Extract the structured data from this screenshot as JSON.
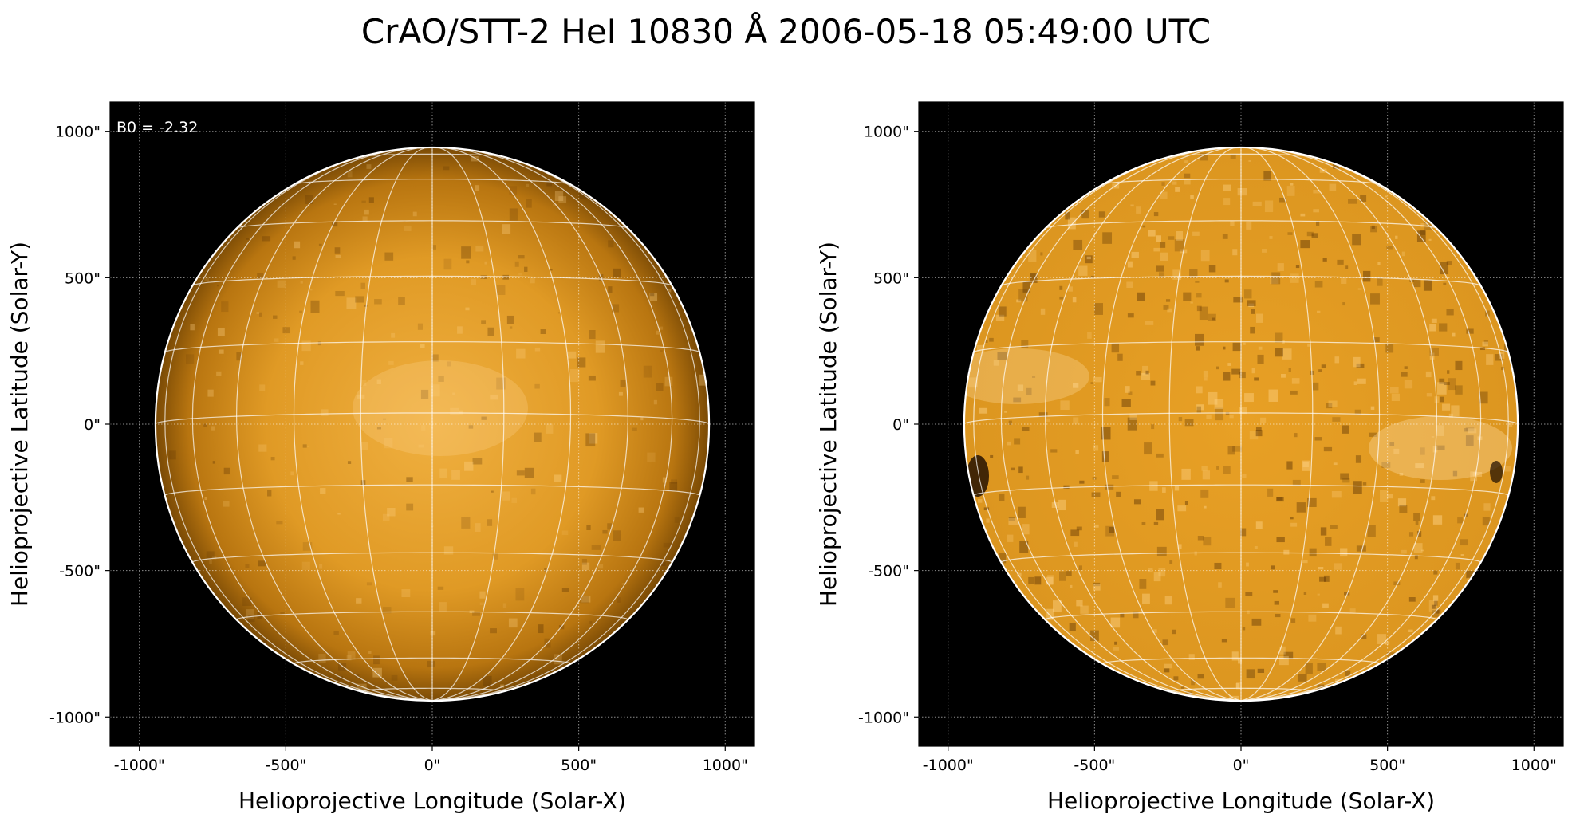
{
  "figure": {
    "title": "CrAO/STT-2 HeI 10830 Å 2006-05-18 05:49:00 UTC"
  },
  "panels": [
    {
      "id": "left",
      "xlabel": "Helioprojective Longitude (Solar-X)",
      "ylabel": "Helioprojective Latitude (Solar-Y)",
      "xticks": [
        "-1000\"",
        "-500\"",
        "0\"",
        "500\"",
        "1000\""
      ],
      "yticks": [
        "1000\"",
        "500\"",
        "0\"",
        "-500\"",
        "-1000\""
      ],
      "annotation": "B0 = -2.32",
      "style": "limb-darkened",
      "disk_color_center": "#f0b040",
      "disk_color_edge": "#7a4a05"
    },
    {
      "id": "right",
      "xlabel": "Helioprojective Longitude (Solar-X)",
      "ylabel": "Helioprojective Latitude (Solar-Y)",
      "xticks": [
        "-1000\"",
        "-500\"",
        "0\"",
        "500\"",
        "1000\""
      ],
      "yticks": [
        "1000\"",
        "500\"",
        "0\"",
        "-500\"",
        "-1000\""
      ],
      "annotation": "",
      "style": "limb-corrected",
      "disk_color_center": "#e8a025",
      "disk_color_edge": "#dc9620"
    }
  ],
  "chart_data": {
    "type": "image",
    "image_kind": "solar full-disk map",
    "x_range_arcsec": [
      -1100,
      1100
    ],
    "y_range_arcsec": [
      -1100,
      1100
    ],
    "tick_values_arcsec": [
      -1000,
      -500,
      0,
      500,
      1000
    ],
    "solar_radius_arcsec": 945,
    "B0_deg": -2.32,
    "heliographic_grid_spacing_deg": 15,
    "background_color": "#000000",
    "grid_color": "#ffffff"
  }
}
